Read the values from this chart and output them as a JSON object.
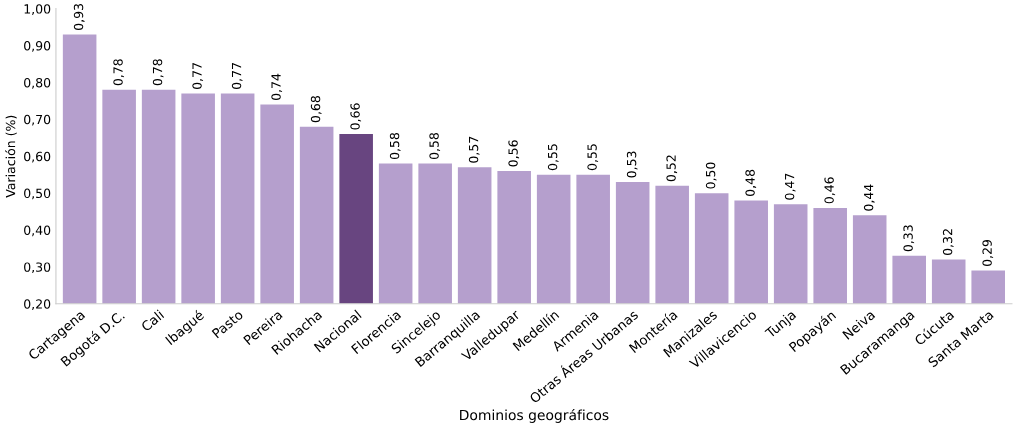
{
  "chart_data": {
    "type": "bar",
    "xlabel": "Dominios geográficos",
    "ylabel": "Variación (%)",
    "categories": [
      "Cartagena",
      "Bogotá D.C.",
      "Cali",
      "Ibagué",
      "Pasto",
      "Pereira",
      "Riohacha",
      "Nacional",
      "Florencia",
      "Sincelejo",
      "Barranquilla",
      "Valledupar",
      "Medellín",
      "Armenia",
      "Otras Áreas Urbanas",
      "Montería",
      "Manizales",
      "Villavicencio",
      "Tunja",
      "Popayán",
      "Neiva",
      "Bucaramanga",
      "Cúcuta",
      "Santa Marta"
    ],
    "values": [
      0.93,
      0.78,
      0.78,
      0.77,
      0.77,
      0.74,
      0.68,
      0.66,
      0.58,
      0.58,
      0.57,
      0.56,
      0.55,
      0.55,
      0.53,
      0.52,
      0.5,
      0.48,
      0.47,
      0.46,
      0.44,
      0.33,
      0.32,
      0.29
    ],
    "value_labels": [
      "0,93",
      "0,78",
      "0,78",
      "0,77",
      "0,77",
      "0,74",
      "0,68",
      "0,66",
      "0,58",
      "0,58",
      "0,57",
      "0,56",
      "0,55",
      "0,55",
      "0,53",
      "0,52",
      "0,50",
      "0,48",
      "0,47",
      "0,46",
      "0,44",
      "0,33",
      "0,32",
      "0,29"
    ],
    "colors": [
      "#b59fcd",
      "#b59fcd",
      "#b59fcd",
      "#b59fcd",
      "#b59fcd",
      "#b59fcd",
      "#b59fcd",
      "#684580",
      "#b59fcd",
      "#b59fcd",
      "#b59fcd",
      "#b59fcd",
      "#b59fcd",
      "#b59fcd",
      "#b59fcd",
      "#b59fcd",
      "#b59fcd",
      "#b59fcd",
      "#b59fcd",
      "#b59fcd",
      "#b59fcd",
      "#b59fcd",
      "#b59fcd",
      "#b59fcd"
    ],
    "ylim": [
      0.2,
      1.0
    ],
    "yticks": [
      {
        "value": 0.2,
        "label": "0,20"
      },
      {
        "value": 0.3,
        "label": "0,30"
      },
      {
        "value": 0.4,
        "label": "0,40"
      },
      {
        "value": 0.5,
        "label": "0,50"
      },
      {
        "value": 0.6,
        "label": "0,60"
      },
      {
        "value": 0.7,
        "label": "0,70"
      },
      {
        "value": 0.8,
        "label": "0,80"
      },
      {
        "value": 0.9,
        "label": "0,90"
      },
      {
        "value": 1.0,
        "label": "1,00"
      }
    ],
    "grid": false,
    "legend": false
  }
}
